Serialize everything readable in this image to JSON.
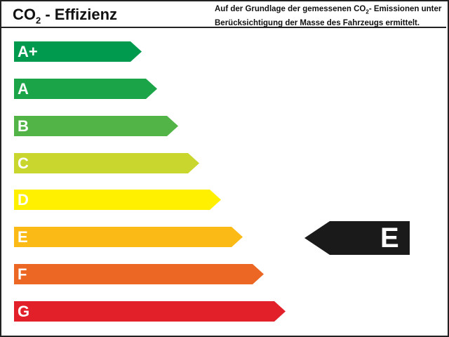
{
  "header": {
    "title_prefix": "CO",
    "title_sub": "2",
    "title_suffix": " - Effizienz",
    "note_part1": "Auf der Grundlage der gemessenen CO",
    "note_sub": "2",
    "note_part2": "- Emissionen unter Berücksichtigung der Masse des Fahrzeugs ermittelt."
  },
  "classes": [
    {
      "label": "A+",
      "color": "#009a4e"
    },
    {
      "label": "A",
      "color": "#1ba548"
    },
    {
      "label": "B",
      "color": "#52b447"
    },
    {
      "label": "C",
      "color": "#c8d62e"
    },
    {
      "label": "D",
      "color": "#fff000"
    },
    {
      "label": "E",
      "color": "#fbba16"
    },
    {
      "label": "F",
      "color": "#ec6624"
    },
    {
      "label": "G",
      "color": "#e2202a"
    }
  ],
  "indicator": {
    "label": "E",
    "color": "#1a1a1a"
  }
}
